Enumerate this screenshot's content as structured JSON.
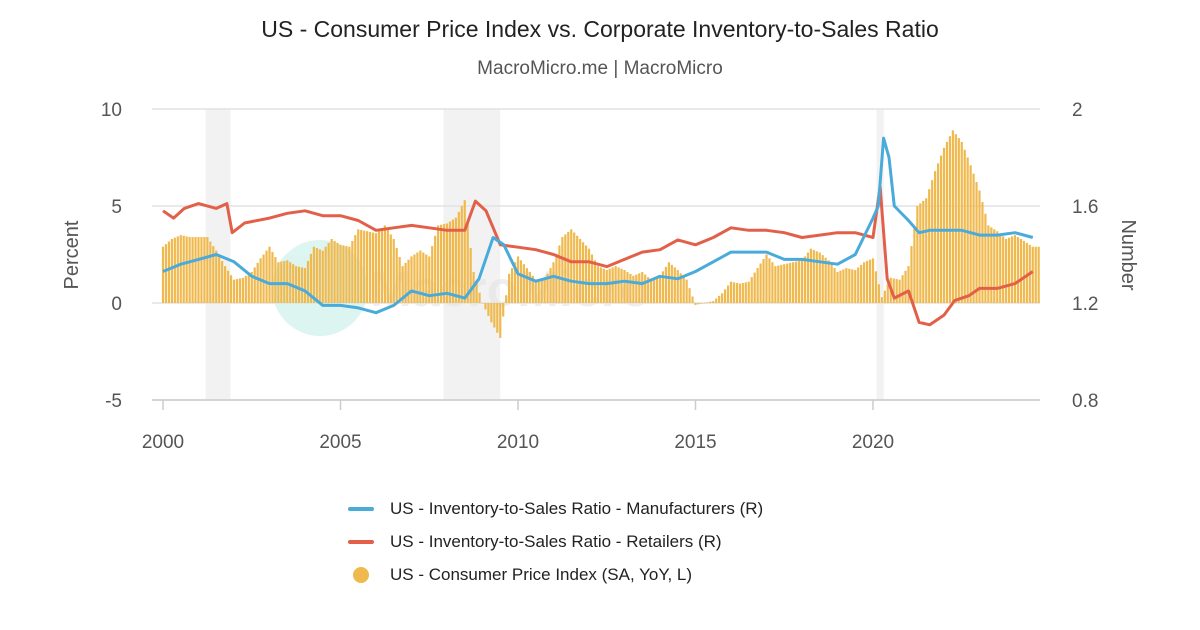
{
  "title": "US - Consumer Price Index vs. Corporate Inventory-to-Sales Ratio",
  "subtitle": "MacroMicro.me | MacroMicro",
  "watermark": "MacroMicro",
  "chart_data": {
    "type": "bar+line",
    "grid": true,
    "legend_placement": "bottom",
    "x_ticks": [
      "2000",
      "2005",
      "2010",
      "2015",
      "2020"
    ],
    "xlim": [
      2000,
      2024.9
    ],
    "y_left": {
      "label": "Percent",
      "range": [
        -5,
        10
      ],
      "ticks": [
        "10",
        "5",
        "0",
        "-5"
      ]
    },
    "y_right": {
      "label": "Number",
      "range": [
        0.8,
        2
      ],
      "ticks": [
        "2",
        "1.6",
        "1.2",
        "0.8"
      ]
    },
    "recessions": [
      [
        2001.2,
        2001.9
      ],
      [
        2007.9,
        2009.5
      ],
      [
        2020.1,
        2020.3
      ]
    ],
    "series": [
      {
        "name": "US - Inventory-to-Sales Ratio - Manufacturers (R)",
        "type": "line",
        "axis": "right",
        "color": "#4aabdb",
        "points": [
          [
            2000,
            1.33
          ],
          [
            2000.5,
            1.36
          ],
          [
            2001,
            1.38
          ],
          [
            2001.5,
            1.4
          ],
          [
            2002,
            1.37
          ],
          [
            2002.5,
            1.31
          ],
          [
            2003,
            1.28
          ],
          [
            2003.5,
            1.28
          ],
          [
            2004,
            1.25
          ],
          [
            2004.5,
            1.19
          ],
          [
            2005,
            1.19
          ],
          [
            2005.5,
            1.18
          ],
          [
            2006,
            1.16
          ],
          [
            2006.5,
            1.19
          ],
          [
            2007,
            1.25
          ],
          [
            2007.5,
            1.23
          ],
          [
            2008,
            1.24
          ],
          [
            2008.5,
            1.22
          ],
          [
            2008.9,
            1.3
          ],
          [
            2009.3,
            1.47
          ],
          [
            2009.6,
            1.44
          ],
          [
            2010,
            1.32
          ],
          [
            2010.5,
            1.29
          ],
          [
            2011,
            1.31
          ],
          [
            2011.5,
            1.29
          ],
          [
            2012,
            1.28
          ],
          [
            2012.5,
            1.28
          ],
          [
            2013,
            1.29
          ],
          [
            2013.5,
            1.28
          ],
          [
            2014,
            1.31
          ],
          [
            2014.5,
            1.3
          ],
          [
            2015,
            1.33
          ],
          [
            2015.5,
            1.37
          ],
          [
            2016,
            1.41
          ],
          [
            2016.5,
            1.41
          ],
          [
            2017,
            1.41
          ],
          [
            2017.5,
            1.38
          ],
          [
            2018,
            1.38
          ],
          [
            2018.5,
            1.37
          ],
          [
            2019,
            1.36
          ],
          [
            2019.5,
            1.4
          ],
          [
            2020,
            1.55
          ],
          [
            2020.15,
            1.6
          ],
          [
            2020.3,
            1.88
          ],
          [
            2020.45,
            1.8
          ],
          [
            2020.6,
            1.6
          ],
          [
            2021,
            1.54
          ],
          [
            2021.3,
            1.49
          ],
          [
            2021.6,
            1.5
          ],
          [
            2022,
            1.5
          ],
          [
            2022.5,
            1.5
          ],
          [
            2023,
            1.48
          ],
          [
            2023.5,
            1.48
          ],
          [
            2024,
            1.49
          ],
          [
            2024.5,
            1.47
          ]
        ]
      },
      {
        "name": "US - Inventory-to-Sales Ratio - Retailers (R)",
        "type": "line",
        "axis": "right",
        "color": "#e2604a",
        "points": [
          [
            2000,
            1.58
          ],
          [
            2000.3,
            1.55
          ],
          [
            2000.6,
            1.59
          ],
          [
            2001,
            1.61
          ],
          [
            2001.5,
            1.59
          ],
          [
            2001.8,
            1.61
          ],
          [
            2001.95,
            1.49
          ],
          [
            2002.3,
            1.53
          ],
          [
            2003,
            1.55
          ],
          [
            2003.5,
            1.57
          ],
          [
            2004,
            1.58
          ],
          [
            2004.5,
            1.56
          ],
          [
            2005,
            1.56
          ],
          [
            2005.5,
            1.54
          ],
          [
            2006,
            1.5
          ],
          [
            2006.5,
            1.51
          ],
          [
            2007,
            1.52
          ],
          [
            2007.5,
            1.51
          ],
          [
            2008,
            1.5
          ],
          [
            2008.5,
            1.5
          ],
          [
            2008.8,
            1.62
          ],
          [
            2009.1,
            1.58
          ],
          [
            2009.5,
            1.44
          ],
          [
            2010,
            1.43
          ],
          [
            2010.5,
            1.42
          ],
          [
            2011,
            1.4
          ],
          [
            2011.5,
            1.37
          ],
          [
            2012,
            1.37
          ],
          [
            2012.5,
            1.35
          ],
          [
            2013,
            1.38
          ],
          [
            2013.5,
            1.41
          ],
          [
            2014,
            1.42
          ],
          [
            2014.5,
            1.46
          ],
          [
            2015,
            1.44
          ],
          [
            2015.5,
            1.47
          ],
          [
            2016,
            1.51
          ],
          [
            2016.5,
            1.5
          ],
          [
            2017,
            1.5
          ],
          [
            2017.5,
            1.49
          ],
          [
            2018,
            1.47
          ],
          [
            2018.5,
            1.48
          ],
          [
            2019,
            1.49
          ],
          [
            2019.5,
            1.49
          ],
          [
            2020,
            1.47
          ],
          [
            2020.2,
            1.68
          ],
          [
            2020.4,
            1.3
          ],
          [
            2020.6,
            1.22
          ],
          [
            2021,
            1.25
          ],
          [
            2021.3,
            1.12
          ],
          [
            2021.6,
            1.11
          ],
          [
            2022,
            1.15
          ],
          [
            2022.3,
            1.21
          ],
          [
            2022.7,
            1.23
          ],
          [
            2023,
            1.26
          ],
          [
            2023.5,
            1.26
          ],
          [
            2024,
            1.28
          ],
          [
            2024.5,
            1.33
          ]
        ]
      },
      {
        "name": "US - Consumer Price Index (SA, YoY, L)",
        "type": "bar",
        "axis": "left",
        "color": "#f0b94d",
        "points": [
          [
            2000,
            2.9
          ],
          [
            2000.25,
            3.3
          ],
          [
            2000.5,
            3.5
          ],
          [
            2000.75,
            3.4
          ],
          [
            2001,
            3.4
          ],
          [
            2001.25,
            3.4
          ],
          [
            2001.5,
            2.7
          ],
          [
            2001.75,
            1.9
          ],
          [
            2002,
            1.2
          ],
          [
            2002.25,
            1.3
          ],
          [
            2002.5,
            1.6
          ],
          [
            2002.75,
            2.3
          ],
          [
            2003,
            2.9
          ],
          [
            2003.25,
            2.1
          ],
          [
            2003.5,
            2.2
          ],
          [
            2003.75,
            1.9
          ],
          [
            2004,
            1.8
          ],
          [
            2004.25,
            2.9
          ],
          [
            2004.5,
            2.7
          ],
          [
            2004.75,
            3.3
          ],
          [
            2005,
            3.0
          ],
          [
            2005.25,
            2.9
          ],
          [
            2005.5,
            3.8
          ],
          [
            2005.75,
            3.7
          ],
          [
            2006,
            3.6
          ],
          [
            2006.25,
            4.0
          ],
          [
            2006.5,
            3.3
          ],
          [
            2006.75,
            1.9
          ],
          [
            2007,
            2.4
          ],
          [
            2007.25,
            2.7
          ],
          [
            2007.5,
            2.4
          ],
          [
            2007.75,
            4.0
          ],
          [
            2008,
            4.1
          ],
          [
            2008.25,
            4.4
          ],
          [
            2008.5,
            5.3
          ],
          [
            2008.75,
            1.6
          ],
          [
            2009,
            0.0
          ],
          [
            2009.25,
            -1.0
          ],
          [
            2009.5,
            -1.8
          ],
          [
            2009.75,
            1.5
          ],
          [
            2010,
            2.4
          ],
          [
            2010.25,
            1.8
          ],
          [
            2010.5,
            1.2
          ],
          [
            2010.75,
            1.2
          ],
          [
            2011,
            2.1
          ],
          [
            2011.25,
            3.4
          ],
          [
            2011.5,
            3.8
          ],
          [
            2011.75,
            3.3
          ],
          [
            2012,
            2.8
          ],
          [
            2012.25,
            1.9
          ],
          [
            2012.5,
            1.7
          ],
          [
            2012.75,
            1.9
          ],
          [
            2013,
            1.7
          ],
          [
            2013.25,
            1.4
          ],
          [
            2013.5,
            1.6
          ],
          [
            2013.75,
            1.2
          ],
          [
            2014,
            1.4
          ],
          [
            2014.25,
            2.1
          ],
          [
            2014.5,
            1.7
          ],
          [
            2014.75,
            1.2
          ],
          [
            2015,
            -0.1
          ],
          [
            2015.25,
            0.0
          ],
          [
            2015.5,
            0.1
          ],
          [
            2015.75,
            0.5
          ],
          [
            2016,
            1.1
          ],
          [
            2016.25,
            1.0
          ],
          [
            2016.5,
            1.1
          ],
          [
            2016.75,
            1.8
          ],
          [
            2017,
            2.5
          ],
          [
            2017.25,
            1.9
          ],
          [
            2017.5,
            2.0
          ],
          [
            2017.75,
            2.1
          ],
          [
            2018,
            2.2
          ],
          [
            2018.25,
            2.8
          ],
          [
            2018.5,
            2.6
          ],
          [
            2018.75,
            2.2
          ],
          [
            2019,
            1.6
          ],
          [
            2019.25,
            1.8
          ],
          [
            2019.5,
            1.7
          ],
          [
            2019.75,
            2.1
          ],
          [
            2020,
            2.3
          ],
          [
            2020.25,
            0.3
          ],
          [
            2020.5,
            1.3
          ],
          [
            2020.75,
            1.2
          ],
          [
            2021,
            1.9
          ],
          [
            2021.25,
            5.0
          ],
          [
            2021.5,
            5.4
          ],
          [
            2021.75,
            6.8
          ],
          [
            2022,
            8.0
          ],
          [
            2022.25,
            8.9
          ],
          [
            2022.5,
            8.3
          ],
          [
            2022.75,
            7.1
          ],
          [
            2023,
            5.8
          ],
          [
            2023.25,
            4.0
          ],
          [
            2023.5,
            3.7
          ],
          [
            2023.75,
            3.3
          ],
          [
            2024,
            3.5
          ],
          [
            2024.25,
            3.2
          ],
          [
            2024.5,
            2.9
          ]
        ]
      }
    ]
  }
}
